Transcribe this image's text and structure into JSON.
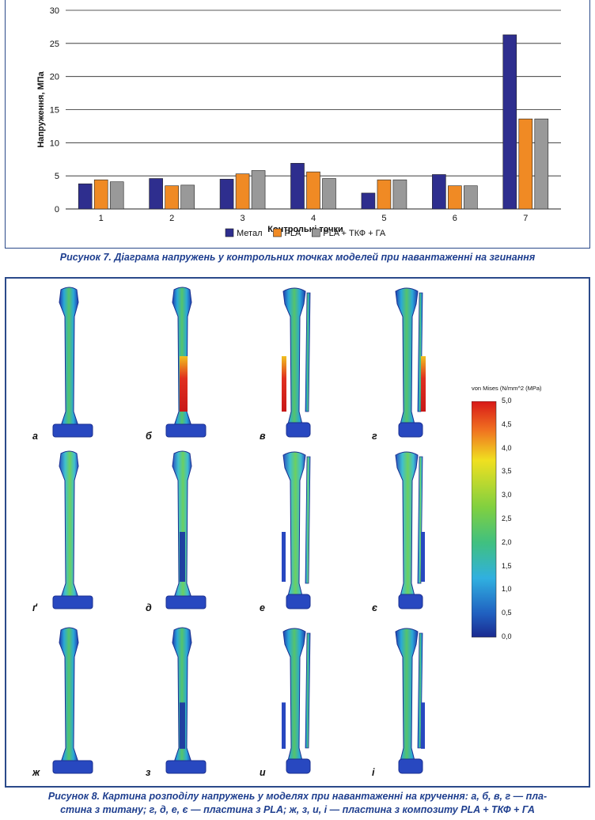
{
  "figure7": {
    "caption": "Рисунок 7. Діаграма напружень у контрольних точках моделей при навантаженні на згинання"
  },
  "chart_data": {
    "type": "bar",
    "categories": [
      "1",
      "2",
      "3",
      "4",
      "5",
      "6",
      "7"
    ],
    "series": [
      {
        "name": "Метал",
        "color": "#2e2e8e",
        "values": [
          3.8,
          4.6,
          4.5,
          6.9,
          2.4,
          5.2,
          26.3
        ]
      },
      {
        "name": "PLA",
        "color": "#f08a24",
        "values": [
          4.4,
          3.5,
          5.3,
          5.6,
          4.4,
          3.5,
          13.6
        ]
      },
      {
        "name": "PLA + ТКФ + ГА",
        "color": "#999999",
        "values": [
          4.1,
          3.6,
          5.8,
          4.6,
          4.4,
          3.5,
          13.6
        ]
      }
    ],
    "ylim": [
      0,
      30
    ],
    "yticks": [
      0,
      5,
      10,
      15,
      20,
      25,
      30
    ],
    "xlabel": "Контрольні точки",
    "ylabel": "Напруження, МПа",
    "grid": "horizontal",
    "legend": "bottom"
  },
  "figure8": {
    "caption_line1": "Рисунок 8. Картина розподілу напружень у моделях при навантаженні на кручення: а, б, в, г — пла-",
    "caption_line2": "стина з титану; г, д, е, є — пластина з PLA; ж, з, и, і — пластина з композиту PLA + ТКФ + ГА",
    "panels": [
      {
        "label": "а",
        "type": "single",
        "hot": "none"
      },
      {
        "label": "б",
        "type": "single",
        "hot": "red"
      },
      {
        "label": "в",
        "type": "double",
        "hot": "plate-red"
      },
      {
        "label": "г",
        "type": "double",
        "hot": "plate-red"
      },
      {
        "label": "ґ",
        "type": "single",
        "hot": "none"
      },
      {
        "label": "д",
        "type": "single",
        "hot": "mid"
      },
      {
        "label": "е",
        "type": "double",
        "hot": "none"
      },
      {
        "label": "є",
        "type": "double",
        "hot": "none"
      },
      {
        "label": "ж",
        "type": "single",
        "hot": "none"
      },
      {
        "label": "з",
        "type": "single",
        "hot": "mid"
      },
      {
        "label": "и",
        "type": "double",
        "hot": "none"
      },
      {
        "label": "і",
        "type": "double",
        "hot": "none"
      }
    ],
    "colorbar": {
      "title": "von Mises (N/mm^2 (MPa)",
      "ticks": [
        "5,0",
        "4,5",
        "4,0",
        "3,5",
        "3,0",
        "2,5",
        "2,0",
        "1,5",
        "1,0",
        "0,5",
        "0,0"
      ]
    }
  }
}
